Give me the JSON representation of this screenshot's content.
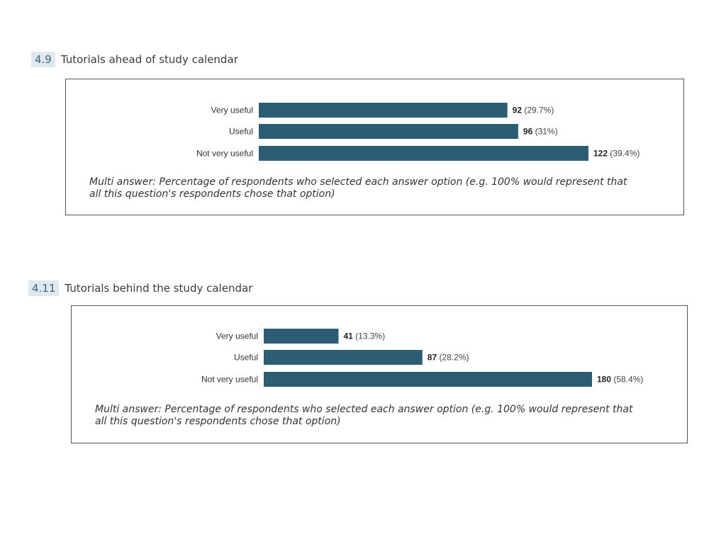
{
  "colors": {
    "bar": "#2d5d75",
    "badge_bg": "#dfe8ee",
    "badge_text": "#3a6683"
  },
  "sections": [
    {
      "number": "4.9",
      "title": "Tutorials ahead of study calendar",
      "note": "Multi answer: Percentage of respondents who selected each answer option (e.g. 100% would represent that all this question's respondents chose that option)"
    },
    {
      "number": "4.11",
      "title": "Tutorials behind the study calendar",
      "note": "Multi answer: Percentage of respondents who selected each answer option (e.g. 100% would represent that all this question's respondents chose that option)"
    }
  ],
  "chart_data": [
    {
      "type": "bar",
      "orientation": "horizontal",
      "categories": [
        "Very useful",
        "Useful",
        "Not very useful"
      ],
      "values": [
        92,
        96,
        122
      ],
      "percent_labels": [
        "(29.7%)",
        "(31%)",
        "(39.4%)"
      ]
    },
    {
      "type": "bar",
      "orientation": "horizontal",
      "categories": [
        "Very useful",
        "Useful",
        "Not very useful"
      ],
      "values": [
        41,
        87,
        180
      ],
      "percent_labels": [
        "(13.3%)",
        "(28.2%)",
        "(58.4%)"
      ]
    }
  ]
}
